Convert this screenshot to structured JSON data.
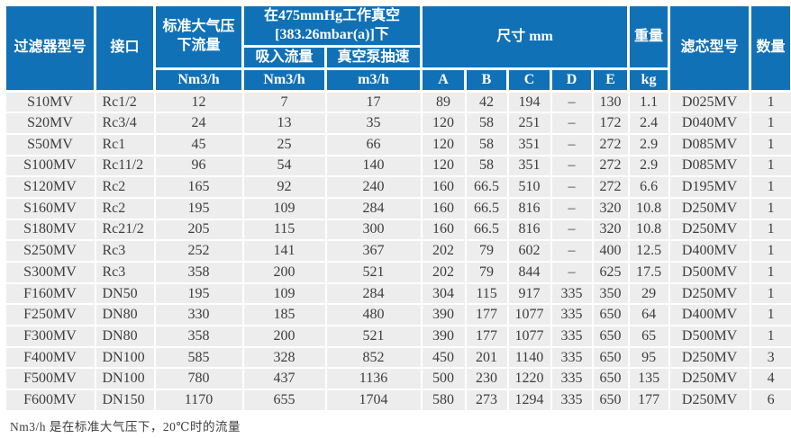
{
  "table": {
    "header": {
      "filter_model": "过滤器型号",
      "connection": "接口",
      "std_atm_flow": "标准大气压下流量",
      "vacuum_group_line1": "在475mmHg工作真空",
      "vacuum_group_line2": "[383.26mbar(a)]下",
      "suction_flow": "吸入流量",
      "pump_speed": "真空泵抽速",
      "dimensions": "尺寸 mm",
      "weight": "重量",
      "element_model": "滤芯型号",
      "quantity": "数量",
      "unit_std_atm_flow": "Nm3/h",
      "unit_suction_flow": "Nm3/h",
      "unit_pump_speed": "m3/h",
      "dim_subcols": [
        "A",
        "B",
        "C",
        "D",
        "E"
      ],
      "unit_weight": "kg"
    },
    "rows": [
      [
        "S10MV",
        "Rc1/2",
        "12",
        "7",
        "17",
        "89",
        "42",
        "194",
        "–",
        "130",
        "1.1",
        "D025MV",
        "1"
      ],
      [
        "S20MV",
        "Rc3/4",
        "24",
        "13",
        "35",
        "120",
        "58",
        "251",
        "–",
        "172",
        "2.4",
        "D040MV",
        "1"
      ],
      [
        "S50MV",
        "Rc1",
        "45",
        "25",
        "66",
        "120",
        "58",
        "351",
        "–",
        "272",
        "2.9",
        "D085MV",
        "1"
      ],
      [
        "S100MV",
        "Rc11/2",
        "96",
        "54",
        "140",
        "120",
        "58",
        "351",
        "–",
        "272",
        "2.9",
        "D085MV",
        "1"
      ],
      [
        "S120MV",
        "Rc2",
        "165",
        "92",
        "240",
        "160",
        "66.5",
        "510",
        "–",
        "272",
        "6.6",
        "D195MV",
        "1"
      ],
      [
        "S160MV",
        "Rc2",
        "195",
        "109",
        "284",
        "160",
        "66.5",
        "816",
        "–",
        "320",
        "10.8",
        "D250MV",
        "1"
      ],
      [
        "S180MV",
        "Rc21/2",
        "205",
        "115",
        "300",
        "160",
        "66.5",
        "816",
        "–",
        "320",
        "10.8",
        "D250MV",
        "1"
      ],
      [
        "S250MV",
        "Rc3",
        "252",
        "141",
        "367",
        "202",
        "79",
        "602",
        "–",
        "400",
        "12.5",
        "D400MV",
        "1"
      ],
      [
        "S300MV",
        "Rc3",
        "358",
        "200",
        "521",
        "202",
        "79",
        "844",
        "–",
        "625",
        "17.5",
        "D500MV",
        "1"
      ],
      [
        "F160MV",
        "DN50",
        "195",
        "109",
        "284",
        "304",
        "115",
        "917",
        "335",
        "350",
        "29",
        "D250MV",
        "1"
      ],
      [
        "F250MV",
        "DN80",
        "330",
        "185",
        "480",
        "390",
        "177",
        "1077",
        "335",
        "650",
        "64",
        "D400MV",
        "1"
      ],
      [
        "F300MV",
        "DN80",
        "358",
        "200",
        "521",
        "390",
        "177",
        "1077",
        "335",
        "650",
        "65",
        "D500MV",
        "1"
      ],
      [
        "F400MV",
        "DN100",
        "585",
        "328",
        "852",
        "450",
        "201",
        "1140",
        "335",
        "650",
        "95",
        "D250MV",
        "3"
      ],
      [
        "F500MV",
        "DN100",
        "780",
        "437",
        "1136",
        "500",
        "230",
        "1220",
        "335",
        "650",
        "135",
        "D250MV",
        "4"
      ],
      [
        "F600MV",
        "DN150",
        "1170",
        "655",
        "1704",
        "580",
        "273",
        "1294",
        "335",
        "650",
        "177",
        "D250MV",
        "6"
      ]
    ]
  },
  "footnote": "Nm3/h 是在标准大气压下，20℃时的流量",
  "colors": {
    "header_bg": "#1171b6",
    "header_text": "#ffffff",
    "row_bg": "#ededed",
    "body_text": "#3d3d3d",
    "separator": "#ffffff"
  }
}
